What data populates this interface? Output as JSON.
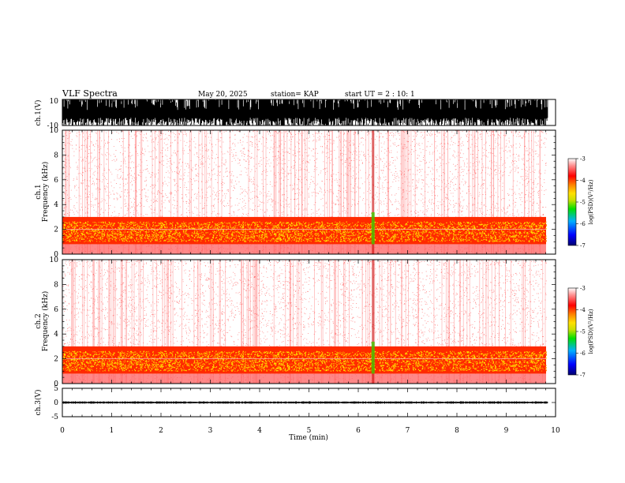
{
  "header": {
    "title": "VLF Spectra",
    "date": "May 20, 2025",
    "station": "station= KAP",
    "start_ut": "start  UT =  2 : 10: 1"
  },
  "chart_data": [
    {
      "type": "line",
      "panel": "ch1_waveform",
      "ylabel": "ch.1(V)",
      "ylim": [
        -10,
        10
      ],
      "yticks": [
        "10",
        "-10"
      ],
      "xlim": [
        0,
        10
      ],
      "description_values": {
        "typical_min": -10,
        "typical_max": 10,
        "data_end_min": 9.85
      },
      "color": "#000000"
    },
    {
      "type": "heatmap",
      "panel": "ch1_spectrogram",
      "ylabel": "ch.1\nFrequency (kHz)",
      "ylim": [
        0,
        10
      ],
      "yticks": [
        "0",
        "2",
        "4",
        "6",
        "8",
        "10"
      ],
      "xlim": [
        0,
        10
      ],
      "intense_band_khz": [
        0.8,
        3.0
      ],
      "notable_event_min": 6.3,
      "colorbar": {
        "label": "log(PSD)(V²/Hz)",
        "range": [
          -7,
          -3
        ],
        "ticks": [
          "-3",
          "-4",
          "-5",
          "-6",
          "-7"
        ]
      }
    },
    {
      "type": "heatmap",
      "panel": "ch2_spectrogram",
      "ylabel": "ch.2\nFrequency (kHz)",
      "ylim": [
        0,
        10
      ],
      "yticks": [
        "0",
        "2",
        "4",
        "6",
        "8",
        "10"
      ],
      "xlim": [
        0,
        10
      ],
      "intense_band_khz": [
        0.8,
        3.0
      ],
      "notable_event_min": 6.3,
      "colorbar": {
        "label": "log(PSD)(V²/Hz)",
        "range": [
          -7,
          -3
        ],
        "ticks": [
          "-3",
          "-4",
          "-5",
          "-6",
          "-7"
        ]
      }
    },
    {
      "type": "line",
      "panel": "ch3_waveform",
      "ylabel": "ch.3(V)",
      "ylim": [
        -5,
        5
      ],
      "yticks": [
        "5",
        "0",
        "-5"
      ],
      "xlim": [
        0,
        10
      ],
      "description_values": {
        "typical_min": -0.3,
        "typical_max": 0.3,
        "data_end_min": 9.85
      },
      "color": "#000000"
    }
  ],
  "xaxis": {
    "label": "Time (min)",
    "ticks": [
      "0",
      "1",
      "2",
      "3",
      "4",
      "5",
      "6",
      "7",
      "8",
      "9",
      "10"
    ]
  },
  "colors": {
    "colormap": [
      "#000070",
      "#0000ff",
      "#00b0ff",
      "#00e000",
      "#c8e000",
      "#ffe000",
      "#ff8000",
      "#ff0000",
      "#ffffff"
    ]
  }
}
